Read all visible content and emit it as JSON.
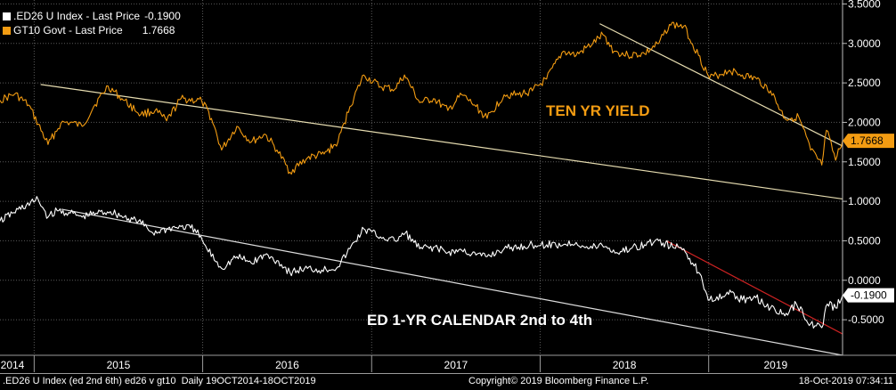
{
  "legend": {
    "items": [
      {
        "label": ".ED26 U Index - Last Price",
        "value": "-0.1900",
        "color": "#ffffff"
      },
      {
        "label": "GT10 Govt - Last Price",
        "value": "1.7668",
        "color": "#f39c12"
      }
    ]
  },
  "footer": {
    "left": ".ED26 U Index (ed 2nd 6th) ed26 v gt10  Daily 19OCT2014-18OCT2019",
    "center": "Copyright© 2019 Bloomberg Finance L.P.",
    "right": "18-Oct-2019 07:34:11"
  },
  "chart_data": {
    "type": "line",
    "x_range": [
      "2014-10-19",
      "2019-10-18"
    ],
    "x_tick_labels": [
      "2014",
      "2015",
      "2016",
      "2017",
      "2018",
      "2019"
    ],
    "y_range": [
      -0.95,
      3.55
    ],
    "y_tick_labels": [
      "3.5000",
      "3.0000",
      "2.5000",
      "2.0000",
      "1.5000",
      "1.0000",
      "0.5000",
      "0.0000",
      "-0.5000"
    ],
    "grid": true,
    "annotations": {
      "ten_yr": "TEN YR YIELD",
      "ed_cal": "ED 1-YR CALENDAR 2nd to 4th"
    },
    "last_values": {
      "ed26": "-0.1900",
      "gt10": "1.7668"
    },
    "series": [
      {
        "name": "GT10 Govt",
        "color": "#f39c12",
        "points": [
          [
            "2014-10-19",
            2.28
          ],
          [
            "2014-11-20",
            2.36
          ],
          [
            "2014-12-20",
            2.22
          ],
          [
            "2015-01-31",
            1.72
          ],
          [
            "2015-02-28",
            1.99
          ],
          [
            "2015-03-20",
            2.0
          ],
          [
            "2015-04-15",
            1.95
          ],
          [
            "2015-05-10",
            2.2
          ],
          [
            "2015-06-10",
            2.46
          ],
          [
            "2015-07-10",
            2.3
          ],
          [
            "2015-08-20",
            2.1
          ],
          [
            "2015-09-20",
            2.15
          ],
          [
            "2015-10-15",
            2.02
          ],
          [
            "2015-11-15",
            2.3
          ],
          [
            "2015-12-30",
            2.27
          ],
          [
            "2016-01-20",
            2.05
          ],
          [
            "2016-02-11",
            1.65
          ],
          [
            "2016-03-15",
            1.95
          ],
          [
            "2016-04-15",
            1.75
          ],
          [
            "2016-05-15",
            1.85
          ],
          [
            "2016-06-10",
            1.65
          ],
          [
            "2016-07-08",
            1.37
          ],
          [
            "2016-08-15",
            1.55
          ],
          [
            "2016-09-20",
            1.6
          ],
          [
            "2016-10-20",
            1.75
          ],
          [
            "2016-11-15",
            2.2
          ],
          [
            "2016-12-15",
            2.6
          ],
          [
            "2017-01-20",
            2.45
          ],
          [
            "2017-02-20",
            2.42
          ],
          [
            "2017-03-13",
            2.6
          ],
          [
            "2017-04-15",
            2.25
          ],
          [
            "2017-05-15",
            2.3
          ],
          [
            "2017-06-15",
            2.15
          ],
          [
            "2017-07-15",
            2.35
          ],
          [
            "2017-08-15",
            2.2
          ],
          [
            "2017-09-08",
            2.05
          ],
          [
            "2017-10-15",
            2.35
          ],
          [
            "2017-11-15",
            2.35
          ],
          [
            "2017-12-15",
            2.4
          ],
          [
            "2018-01-15",
            2.55
          ],
          [
            "2018-02-20",
            2.9
          ],
          [
            "2018-03-20",
            2.85
          ],
          [
            "2018-04-25",
            3.0
          ],
          [
            "2018-05-17",
            3.11
          ],
          [
            "2018-06-10",
            2.9
          ],
          [
            "2018-07-10",
            2.85
          ],
          [
            "2018-08-15",
            2.87
          ],
          [
            "2018-09-15",
            3.0
          ],
          [
            "2018-10-08",
            3.24
          ],
          [
            "2018-11-08",
            3.22
          ],
          [
            "2018-12-10",
            2.85
          ],
          [
            "2019-01-03",
            2.56
          ],
          [
            "2019-02-15",
            2.66
          ],
          [
            "2019-03-15",
            2.6
          ],
          [
            "2019-04-15",
            2.55
          ],
          [
            "2019-05-15",
            2.4
          ],
          [
            "2019-06-15",
            2.05
          ],
          [
            "2019-07-15",
            2.07
          ],
          [
            "2019-08-10",
            1.65
          ],
          [
            "2019-09-03",
            1.46
          ],
          [
            "2019-09-13",
            1.9
          ],
          [
            "2019-10-03",
            1.52
          ],
          [
            "2019-10-18",
            1.7668
          ]
        ]
      },
      {
        "name": ".ED26 U Index",
        "color": "#ffffff",
        "points": [
          [
            "2014-10-19",
            0.75
          ],
          [
            "2014-11-15",
            0.85
          ],
          [
            "2014-12-15",
            0.95
          ],
          [
            "2015-01-10",
            1.02
          ],
          [
            "2015-01-31",
            0.8
          ],
          [
            "2015-02-20",
            0.88
          ],
          [
            "2015-03-20",
            0.85
          ],
          [
            "2015-04-15",
            0.8
          ],
          [
            "2015-05-15",
            0.85
          ],
          [
            "2015-06-15",
            0.87
          ],
          [
            "2015-07-15",
            0.8
          ],
          [
            "2015-08-15",
            0.75
          ],
          [
            "2015-09-15",
            0.6
          ],
          [
            "2015-10-15",
            0.65
          ],
          [
            "2015-11-15",
            0.68
          ],
          [
            "2015-12-15",
            0.65
          ],
          [
            "2016-01-10",
            0.4
          ],
          [
            "2016-02-11",
            0.15
          ],
          [
            "2016-03-15",
            0.3
          ],
          [
            "2016-04-15",
            0.22
          ],
          [
            "2016-05-15",
            0.32
          ],
          [
            "2016-06-10",
            0.25
          ],
          [
            "2016-07-08",
            0.1
          ],
          [
            "2016-08-15",
            0.15
          ],
          [
            "2016-09-15",
            0.13
          ],
          [
            "2016-10-20",
            0.17
          ],
          [
            "2016-11-15",
            0.4
          ],
          [
            "2016-12-15",
            0.65
          ],
          [
            "2017-01-20",
            0.55
          ],
          [
            "2017-02-20",
            0.5
          ],
          [
            "2017-03-15",
            0.6
          ],
          [
            "2017-04-15",
            0.4
          ],
          [
            "2017-05-15",
            0.42
          ],
          [
            "2017-06-15",
            0.35
          ],
          [
            "2017-07-15",
            0.38
          ],
          [
            "2017-08-15",
            0.32
          ],
          [
            "2017-09-08",
            0.3
          ],
          [
            "2017-10-15",
            0.4
          ],
          [
            "2017-11-15",
            0.42
          ],
          [
            "2017-12-15",
            0.45
          ],
          [
            "2018-01-15",
            0.45
          ],
          [
            "2018-02-20",
            0.45
          ],
          [
            "2018-03-20",
            0.48
          ],
          [
            "2018-04-15",
            0.4
          ],
          [
            "2018-05-15",
            0.45
          ],
          [
            "2018-06-15",
            0.35
          ],
          [
            "2018-07-15",
            0.4
          ],
          [
            "2018-08-15",
            0.45
          ],
          [
            "2018-09-15",
            0.5
          ],
          [
            "2018-10-15",
            0.42
          ],
          [
            "2018-11-08",
            0.4
          ],
          [
            "2018-12-10",
            0.1
          ],
          [
            "2019-01-03",
            -0.25
          ],
          [
            "2019-02-10",
            -0.15
          ],
          [
            "2019-03-15",
            -0.25
          ],
          [
            "2019-04-10",
            -0.2
          ],
          [
            "2019-05-15",
            -0.35
          ],
          [
            "2019-06-15",
            -0.45
          ],
          [
            "2019-07-10",
            -0.3
          ],
          [
            "2019-08-10",
            -0.55
          ],
          [
            "2019-09-03",
            -0.6
          ],
          [
            "2019-09-15",
            -0.3
          ],
          [
            "2019-10-03",
            -0.35
          ],
          [
            "2019-10-18",
            -0.19
          ]
        ]
      }
    ],
    "trendlines": [
      {
        "color": "#e6dcb0",
        "from": [
          "2015-01-15",
          2.48
        ],
        "to": [
          "2019-10-18",
          1.03
        ]
      },
      {
        "color": "#e6dcb0",
        "from": [
          "2018-05-10",
          3.25
        ],
        "to": [
          "2019-10-18",
          1.7
        ]
      },
      {
        "color": "#dddddd",
        "from": [
          "2015-03-01",
          0.9
        ],
        "to": [
          "2019-10-18",
          -0.95
        ]
      },
      {
        "color": "#cc2222",
        "from": [
          "2018-10-01",
          0.5
        ],
        "to": [
          "2019-10-18",
          -0.68
        ]
      }
    ]
  }
}
